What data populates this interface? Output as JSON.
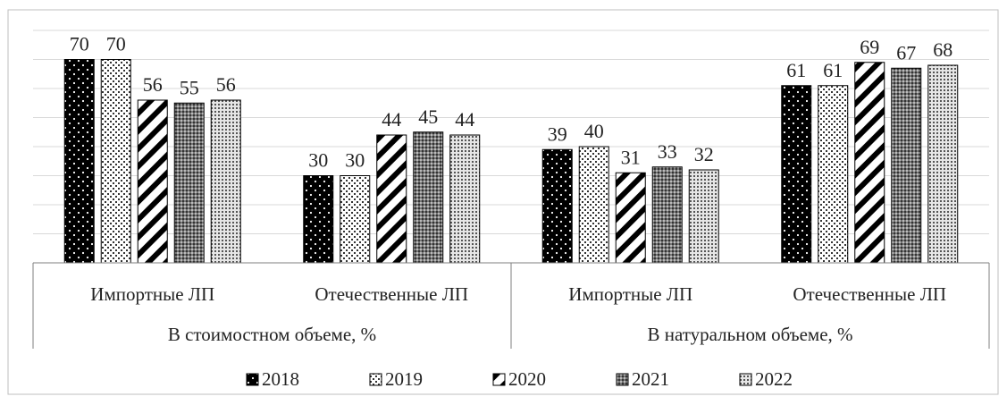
{
  "chart_data": {
    "type": "bar",
    "groups": [
      {
        "label": "В стоимостном объеме, %",
        "categories": [
          "Импортные ЛП",
          "Отечественные ЛП"
        ]
      },
      {
        "label": "В натуральном объеме, %",
        "categories": [
          "Импортные ЛП",
          "Отечественные ЛП"
        ]
      }
    ],
    "categories": [
      "Импортные ЛП",
      "Отечественные ЛП",
      "Импортные ЛП",
      "Отечественные ЛП"
    ],
    "series": [
      {
        "name": "2018",
        "values": [
          70,
          30,
          39,
          61
        ]
      },
      {
        "name": "2019",
        "values": [
          70,
          30,
          40,
          61
        ]
      },
      {
        "name": "2020",
        "values": [
          56,
          44,
          31,
          69
        ]
      },
      {
        "name": "2021",
        "values": [
          55,
          45,
          33,
          67
        ]
      },
      {
        "name": "2022",
        "values": [
          56,
          44,
          32,
          68
        ]
      }
    ],
    "ylim": [
      0,
      80
    ],
    "y_axis_labels_shown": false,
    "grid": true,
    "data_labels": true,
    "legend": "bottom",
    "series_fills": [
      "solid black with white dots",
      "white with dark dots",
      "diagonal stripes",
      "dark grey crosshatch",
      "light grey dots"
    ]
  },
  "colors": {
    "gridline": "#d9d9d9",
    "frame": "#bfbfbf",
    "bar_outline": "#000000",
    "text": "#222222"
  }
}
